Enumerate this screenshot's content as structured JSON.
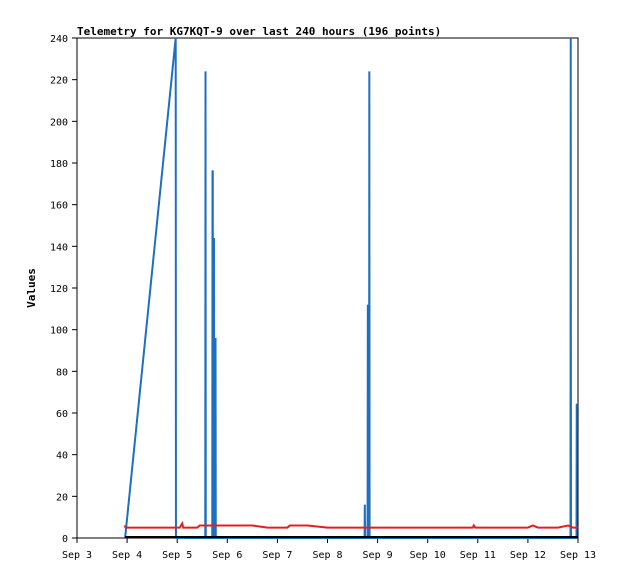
{
  "chart_data": {
    "type": "line",
    "title": "Telemetry for KG7KQT-9 over last 240 hours (196 points)",
    "xlabel": "",
    "ylabel": "Values",
    "x_ticks": [
      "Sep 3",
      "Sep 4",
      "Sep 5",
      "Sep 6",
      "Sep 7",
      "Sep 8",
      "Sep 9",
      "Sep 10",
      "Sep 11",
      "Sep 12",
      "Sep 13"
    ],
    "y_ticks": [
      0,
      20,
      40,
      60,
      80,
      100,
      120,
      140,
      160,
      180,
      200,
      220,
      240
    ],
    "xlim": [
      0,
      10
    ],
    "ylim": [
      0,
      240
    ],
    "grid": false,
    "series": [
      {
        "color": "#1f6fbf",
        "points": [
          [
            0.96,
            0
          ],
          [
            1.97,
            240
          ],
          [
            1.975,
            0
          ],
          [
            2.56,
            0
          ],
          [
            2.565,
            224
          ],
          [
            2.57,
            0
          ],
          [
            2.7,
            0
          ],
          [
            2.705,
            176
          ],
          [
            2.71,
            176
          ],
          [
            2.715,
            0
          ],
          [
            2.73,
            0
          ],
          [
            2.735,
            144
          ],
          [
            2.74,
            0
          ],
          [
            2.76,
            0
          ],
          [
            2.765,
            96
          ],
          [
            2.77,
            0
          ],
          [
            5.74,
            0
          ],
          [
            5.745,
            16
          ],
          [
            5.75,
            0
          ],
          [
            5.8,
            0
          ],
          [
            5.805,
            112
          ],
          [
            5.81,
            0
          ],
          [
            5.83,
            0
          ],
          [
            5.835,
            224
          ],
          [
            5.84,
            0
          ],
          [
            9.85,
            0
          ],
          [
            9.855,
            240
          ],
          [
            9.86,
            0
          ],
          [
            9.97,
            0
          ],
          [
            9.975,
            64
          ],
          [
            10.0,
            64
          ]
        ]
      },
      {
        "color": "#e02020",
        "points": [
          [
            0.95,
            6
          ],
          [
            0.97,
            5
          ],
          [
            2.0,
            5
          ],
          [
            2.05,
            5
          ],
          [
            2.1,
            7
          ],
          [
            2.12,
            5
          ],
          [
            2.4,
            5
          ],
          [
            2.45,
            6
          ],
          [
            2.7,
            6
          ],
          [
            2.8,
            6
          ],
          [
            3.0,
            6
          ],
          [
            3.2,
            6
          ],
          [
            3.5,
            6
          ],
          [
            3.8,
            5
          ],
          [
            4.2,
            5
          ],
          [
            4.25,
            6
          ],
          [
            4.6,
            6
          ],
          [
            5.0,
            5
          ],
          [
            5.5,
            5
          ],
          [
            5.7,
            5
          ],
          [
            6.0,
            5
          ],
          [
            7.0,
            5
          ],
          [
            7.9,
            5
          ],
          [
            7.92,
            6
          ],
          [
            7.95,
            5
          ],
          [
            8.5,
            5
          ],
          [
            9.0,
            5
          ],
          [
            9.1,
            6
          ],
          [
            9.2,
            5
          ],
          [
            9.4,
            5
          ],
          [
            9.6,
            5
          ],
          [
            9.8,
            6
          ],
          [
            9.9,
            5
          ],
          [
            10.0,
            5
          ]
        ]
      },
      {
        "color": "#000000",
        "points": [
          [
            0.96,
            0.5
          ],
          [
            10.0,
            0.5
          ]
        ]
      }
    ]
  }
}
